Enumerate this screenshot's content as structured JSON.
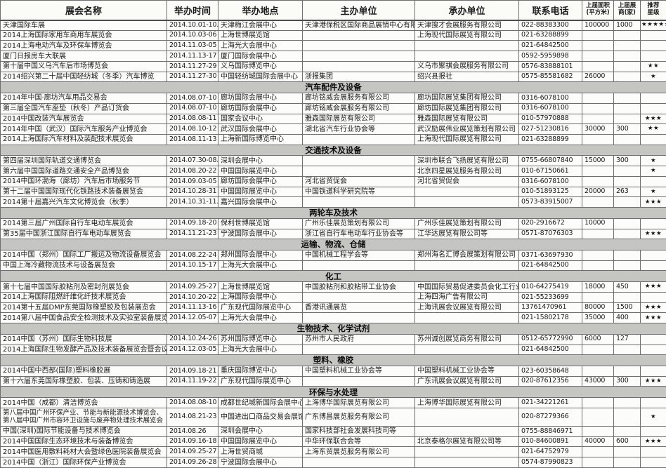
{
  "table": {
    "headers": {
      "name": "展会名称",
      "date": "举办时间",
      "venue": "举办地点",
      "host": "主办单位",
      "organizer": "承办单位",
      "phone": "联系电话",
      "area_line1": "上届面积",
      "area_line2": "(平方米)",
      "exhibitors_line1": "上届展",
      "exhibitors_line2": "商(家)",
      "stars_line1": "推荐",
      "stars_line2": "星级"
    },
    "groups": [
      {
        "title": "",
        "rows": [
          {
            "name": "天津国际车展",
            "date": "2014.10.01-10.06",
            "venue": "天津梅江会展中心",
            "host": "天津港保税区国际商品展销中心有限公司",
            "organizer": "天津搜才会展服务有限公司",
            "phone": "022-88383300",
            "area": "100000",
            "exhibitors": "1000",
            "stars": "★★★★★"
          },
          {
            "name": "2014上海国际家用车商用车展览会",
            "date": "2014.10.03-06",
            "venue": "上海世博展览馆",
            "organizer": "上海现代国际展览有限公司",
            "phone": "021-63288899"
          },
          {
            "name": "2014上海电动汽车及环保车博览会",
            "date": "2014.11.03-05",
            "venue": "上海光大会展中心",
            "phone": "021-64842500"
          },
          {
            "name": "厦门日报房车大联展",
            "date": "2014.11.13-17",
            "venue": "厦门国际会展中心",
            "phone": "0592-5959898"
          },
          {
            "name": "第十届中国义乌汽车后市场博览会",
            "date": "2014.11.27-29",
            "venue": "义乌国际博览中心",
            "organizer": "义乌市聚祺会展服务有限公司",
            "phone": "0576-83888101",
            "stars": "★★"
          },
          {
            "name": "2014绍兴第二十届中国轻纺城（冬季）汽车博览",
            "date": "2014.11.27-30",
            "venue": "中国轻纺城国际会展中心",
            "host": "浙报集团",
            "organizer": "绍兴县报社",
            "phone": "0575-85581682",
            "area": "26000",
            "stars": "★"
          }
        ]
      },
      {
        "title": "汽车配件及设备",
        "rows": [
          {
            "name": "2014年中国·廊坊汽车用品交易会",
            "date": "2014.08.07-10",
            "venue": "廊坊国际会展中心",
            "host": "廊坊铭威会展服务有限公司",
            "organizer": "廊坊国际展览集团有限公司",
            "phone": "0316-6078100"
          },
          {
            "name": "第三届全国汽车座垫（秋冬）产品订货会",
            "date": "2014.08.07-10",
            "venue": "廊坊国际会展中心",
            "host": "廊坊铭威会展服务有限公司",
            "organizer": "廊坊国际展览集团有限公司",
            "phone": "0316-6078100"
          },
          {
            "name": "2014中国改装汽车展览会",
            "date": "2014.08.08-11",
            "venue": "国家会议中心",
            "host": "雅森国际展览有限公司",
            "organizer": "雅森国际展览有限公司",
            "phone": "010-57970888",
            "stars": "★★★"
          },
          {
            "name": "2014年中国（武汉）国际汽车服务产业博览会",
            "date": "2014.08.10-12",
            "venue": "武汉国际会展中心",
            "host": "湖北省汽车行业协会等",
            "organizer": "武汉励展伟业展览策划有限公司",
            "phone": "027-51230816",
            "area": "30000",
            "exhibitors": "300",
            "stars": "★★"
          },
          {
            "name": "2014上海国际汽车材料及装配技术展览会",
            "date": "2014.08.11-13",
            "venue": "上海新国际博览中心",
            "organizer": "上海现代国际展览有限公司",
            "phone": "021-63288899"
          }
        ]
      },
      {
        "title": "交通技术及设备",
        "rows": [
          {
            "name": "第四届深圳国际轨道交通博览会",
            "date": "2014.07.30-08.01",
            "venue": "深圳会展中心",
            "organizer": "深圳市联合飞扬展览有限公司",
            "phone": "0755-66807840",
            "area": "15000",
            "exhibitors": "300",
            "stars": "★"
          },
          {
            "name": "第六届中国国际道路交通安全产品博览会",
            "date": "2014.08.20-22",
            "venue": "中国国际展览中心",
            "organizer": "北京四星展览服务有限公司",
            "phone": "010-67150661",
            "stars": "★"
          },
          {
            "name": "2014中国环渤海（廊坊）汽车后市场服务节",
            "date": "2014.09.03-05",
            "venue": "廊坊国际会展中心",
            "host": "河北省贸促会",
            "organizer": "河北省贸促会",
            "phone": "0316-6078100"
          },
          {
            "name": "第十二届中国国际现代化铁路技术装备展览会",
            "date": "2014.10.28-31",
            "venue": "中国国际展览中心",
            "host": "中国铁道科学研究院等",
            "phone": "010-51893125",
            "area": "20000",
            "exhibitors": "263",
            "stars": "★"
          },
          {
            "name": "2014第十届嘉兴汽车文化博览会（秋季）",
            "date": "2014.10.31-11.02",
            "venue": "嘉兴国际会展中心",
            "phone": "0573-83915007",
            "stars": "★★★"
          }
        ]
      },
      {
        "title": "两轮车及技术",
        "rows": [
          {
            "name": "2014第三届广州国际自行车电动车展览会",
            "date": "2014.09.18-20",
            "venue": "保利世博展览馆",
            "host": "广州乐佳展览策划有限公司",
            "organizer": "广州乐佳展览策划有限公司",
            "phone": "020-2916672",
            "area": "10000"
          },
          {
            "name": "第35届中国浙江国际自行车电动车展览会",
            "date": "2014.11.21-23",
            "venue": "宁波国际会展中心",
            "host": "浙江省自行车电动车行业协会等",
            "organizer": "江华达展览有限公司等",
            "phone": "0571-87076303",
            "stars": "★★★"
          }
        ]
      },
      {
        "title": "运输、物流、仓储",
        "rows": [
          {
            "name": "2014中国（郑州）国际工厂搬运及物流设备展览会",
            "date": "2014.08.22-24",
            "venue": "郑州国际会展中心",
            "host": "中国机械工程学会等",
            "organizer": "郑州海名汇博会展策划有限公司",
            "phone": "0371-63697930"
          },
          {
            "name": "中国上海冷藏物流技术与设备展览会",
            "date": "2014.10.15-17",
            "venue": "上海光大会展中心",
            "phone": "021-64842500"
          }
        ]
      },
      {
        "title": "化工",
        "rows": [
          {
            "name": "第十七届中国国际胶粘剂及密封剂展览会",
            "date": "2014.09.25-27",
            "venue": "上海世博展览馆",
            "host": "中国胶粘剂和胶粘带工业协会",
            "organizer": "中国国际贸易促进委员会化工行业分会",
            "phone": "010-64275419",
            "area": "18000",
            "exhibitors": "450",
            "stars": "★★★"
          },
          {
            "name": "2014上海国际阻燃纤维化纤技术展览会",
            "date": "2014.10.20-22",
            "venue": "上海国际会展中心",
            "organizer": "上海四海广告有限公司",
            "phone": "021-55233699"
          },
          {
            "name": "2014第十五届DMP东莞国际橡塑胶及包装展览会",
            "date": "2014.11.13-16",
            "venue": "广东现代国际展览中心",
            "host": "香港讯通展览",
            "organizer": "上海讯展会议展览有限公司",
            "phone": "13761470961",
            "area": "80000",
            "exhibitors": "1500",
            "stars": "★★★"
          },
          {
            "name": "2014第八届中国食品安全检测技术及实验室装备展览会",
            "date": "2014.12.05-07",
            "venue": "上海光大会展中心",
            "phone": "021-15802178",
            "area": "35000",
            "exhibitors": "400",
            "stars": "★★★"
          }
        ]
      },
      {
        "title": "生物技术、化学试剂",
        "rows": [
          {
            "name": "2014中国（苏州）国际生物科技展",
            "date": "2014.10.24-26",
            "venue": "苏州国际博览中心",
            "host": "苏州市人民政府",
            "organizer": "苏州诚创展览商务有限公司",
            "phone": "0512-65772990",
            "area": "6000",
            "exhibitors": "127"
          },
          {
            "name": "2014上海国际生物发酵产品及技术装备展览会暨会议",
            "date": "2014.12.03-05",
            "venue": "上海光大会展中心",
            "phone": "021-64842500"
          }
        ]
      },
      {
        "title": "塑料、橡胶",
        "rows": [
          {
            "name": "2014中国中西部(国际)塑料橡胶展",
            "date": "2014.09.18-21",
            "venue": "重庆国际博览中心",
            "host": "中国塑料机械工业协会等",
            "organizer": "中国塑料机械工业协会等",
            "phone": "023-60358648"
          },
          {
            "name": "第十六届东莞国际橡塑胶、包装、压铸和铸造展",
            "date": "2014.11.19-22",
            "venue": "广东现代国际展览中心",
            "organizer": "广东讯展会议展览有限公司",
            "phone": "020-87612356",
            "area": "43000",
            "exhibitors": "300",
            "stars": "★★★"
          }
        ]
      },
      {
        "title": "环保与水处理",
        "rows": [
          {
            "name": "2014中国（成都）清洁博览会",
            "date": "2014.08.08-10",
            "venue": "成都世纪城新国际会展中心",
            "host": "上海博华国际展览有限公司",
            "organizer": "上海博华国际展览有限公司",
            "phone": "021-34221261"
          },
          {
            "name": "第八届中国广州环保产业、节能与新能源技术博览会、第八届中国广州市容环卫设施与废弃物处理技术展览会",
            "date": "2014.08.21-23",
            "venue": "中国进出口商品交易会展馆",
            "host": "广东博昌展览服务有限公司",
            "phone": "020-87279366",
            "stars": "★"
          },
          {
            "name": "中国(深圳)国际节能设备与技术博览会",
            "date": "2014.08.26",
            "venue": "深圳会展中心",
            "host": "国家科技部社会发展科技司等",
            "phone": "0755-88846971"
          },
          {
            "name": "2014中国国际生态环境技术与装备博览会",
            "date": "2014.09.16-18",
            "venue": "中国国际展览中心",
            "host": "中华环保联合会等",
            "organizer": "北京泰格尔展览有限公司等",
            "phone": "010-84600891",
            "area": "40000",
            "exhibitors": "600",
            "stars": "★★★"
          },
          {
            "name": "2014中国医用敷料耗材大会暨绿色医院装备展览会",
            "date": "2014.09.25-27",
            "venue": "上海世贸商城",
            "host": "上海东贸展览服务有限公司",
            "phone": "021-64752979"
          },
          {
            "name": "2014中国（浙江）国际环保产业博览会",
            "date": "2014.09.26-28",
            "venue": "宁波国际会展中心",
            "phone": "0574-87990823"
          }
        ]
      }
    ]
  }
}
